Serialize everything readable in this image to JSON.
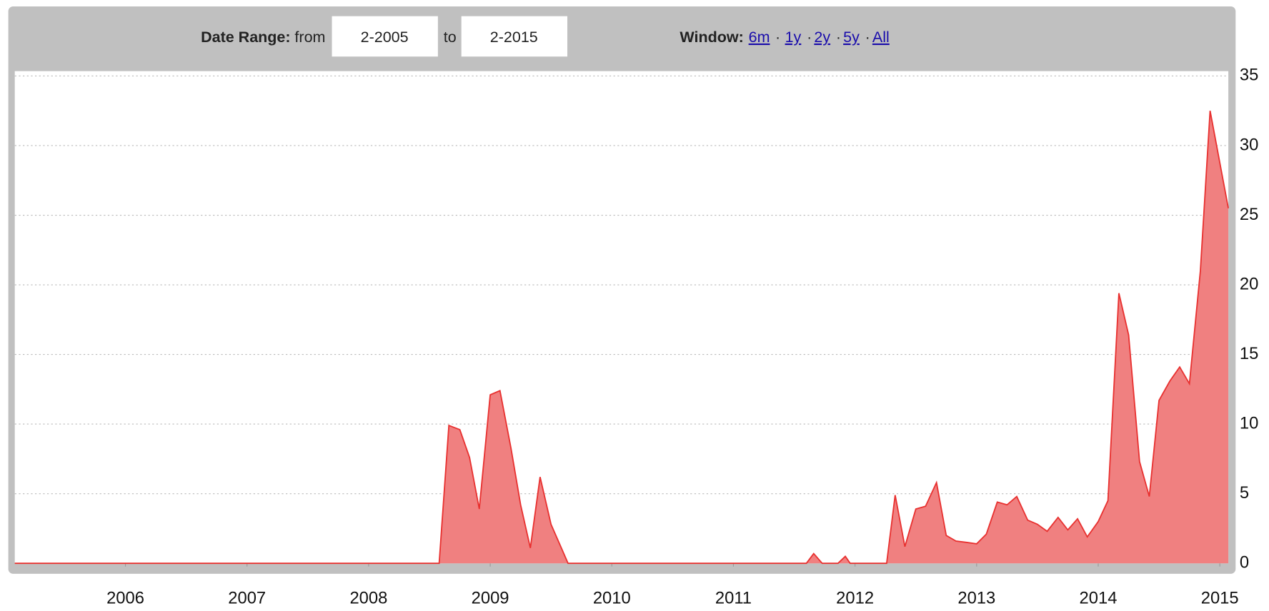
{
  "controls": {
    "date_range_label": "Date Range:",
    "from_label": "from",
    "from_value": "2-2005",
    "to_label": "to",
    "to_value": "2-2015",
    "window_label": "Window:",
    "window_options": [
      "6m",
      "1y",
      "2y",
      "5y",
      "All"
    ],
    "separator": "·"
  },
  "chart_data": {
    "type": "area",
    "x": [
      2005.09,
      2008.58,
      2008.66,
      2008.75,
      2008.83,
      2008.91,
      2009.0,
      2009.08,
      2009.17,
      2009.25,
      2009.33,
      2009.41,
      2009.5,
      2009.58,
      2009.64,
      2011.6,
      2011.66,
      2011.73,
      2011.86,
      2011.92,
      2011.96,
      2012.26,
      2012.33,
      2012.41,
      2012.5,
      2012.58,
      2012.67,
      2012.75,
      2012.83,
      2012.92,
      2013.0,
      2013.08,
      2013.17,
      2013.25,
      2013.33,
      2013.42,
      2013.5,
      2013.58,
      2013.67,
      2013.75,
      2013.83,
      2013.91,
      2014.0,
      2014.08,
      2014.17,
      2014.25,
      2014.34,
      2014.42,
      2014.5,
      2014.59,
      2014.67,
      2014.75,
      2014.84,
      2014.92,
      2015.07
    ],
    "values": [
      0,
      0,
      9.9,
      9.6,
      7.6,
      3.9,
      12.1,
      12.4,
      8.3,
      4.2,
      1.1,
      6.2,
      2.8,
      1.2,
      0,
      0,
      0.7,
      0,
      0,
      0.5,
      0,
      0,
      4.9,
      1.2,
      3.9,
      4.1,
      5.8,
      2.0,
      1.6,
      1.5,
      1.4,
      2.1,
      4.4,
      4.2,
      4.8,
      3.1,
      2.8,
      2.3,
      3.3,
      2.4,
      3.2,
      1.9,
      3.0,
      4.5,
      19.4,
      16.4,
      7.3,
      4.8,
      11.7,
      13.1,
      14.1,
      12.9,
      21.0,
      32.5,
      25.5
    ],
    "color": "#f08080",
    "line_color": "#e8302f",
    "xlim": [
      2005.09,
      2015.07
    ],
    "xticks": [
      2006,
      2007,
      2008,
      2009,
      2010,
      2011,
      2012,
      2013,
      2014,
      2015
    ],
    "ylim": [
      0,
      35
    ],
    "yticks": [
      0,
      5,
      10,
      15,
      20,
      25,
      30,
      35
    ],
    "grid": true
  }
}
